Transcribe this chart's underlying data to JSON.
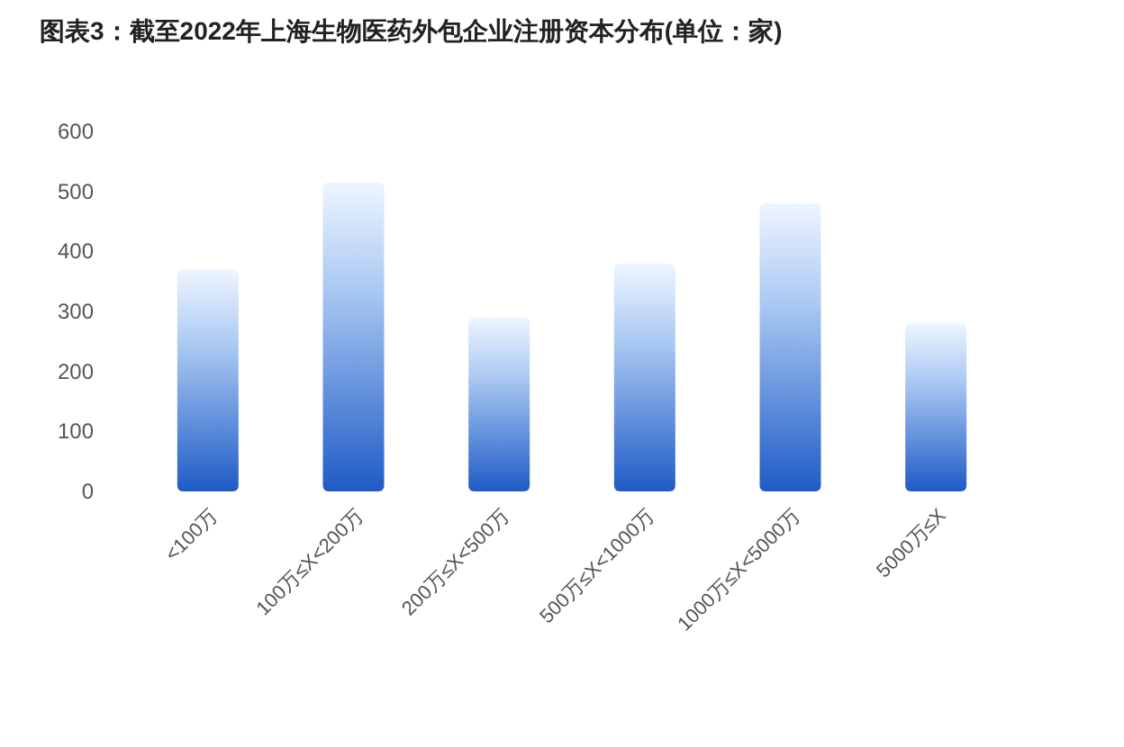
{
  "chart_data": {
    "type": "bar",
    "title": "图表3：截至2022年上海生物医药外包企业注册资本分布(单位：家)",
    "categories": [
      "<100万",
      "100万≤X<200万",
      "200万≤X<500万",
      "500万≤X<1000万",
      "1000万≤X<5000万",
      "5000万≤X"
    ],
    "values": [
      370,
      515,
      290,
      380,
      480,
      280
    ],
    "color": "#1f5bc6",
    "ylim": [
      0,
      600
    ],
    "yticks": [
      0,
      100,
      200,
      300,
      400,
      500,
      600
    ]
  }
}
